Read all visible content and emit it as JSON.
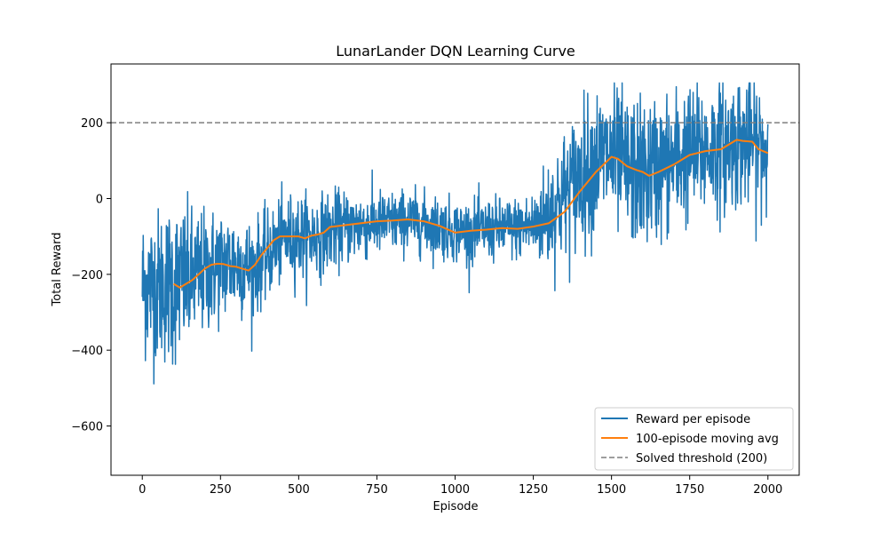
{
  "chart_data": {
    "type": "line",
    "title": "LunarLander DQN Learning Curve",
    "xlabel": "Episode",
    "ylabel": "Total Reward",
    "xlim": [
      -100,
      2100
    ],
    "ylim": [
      -730,
      355
    ],
    "xticks": [
      0,
      250,
      500,
      750,
      1000,
      1250,
      1500,
      1750,
      2000
    ],
    "yticks": [
      -600,
      -400,
      -200,
      0,
      200
    ],
    "xtick_labels": [
      "0",
      "250",
      "500",
      "750",
      "1000",
      "1250",
      "1500",
      "1750",
      "2000"
    ],
    "ytick_labels": [
      "−600",
      "−400",
      "−200",
      "0",
      "200"
    ],
    "grid": false,
    "legend_position": "bottom-right",
    "colors": {
      "reward": "#1f77b4",
      "moving_avg": "#ff7f0e",
      "threshold": "#7f7f7f"
    },
    "series": [
      {
        "name": "Reward per episode",
        "style": "solid",
        "episodes": 2000,
        "x_start": 0,
        "x_end": 2000,
        "trend_x": [
          0,
          50,
          100,
          150,
          200,
          250,
          300,
          350,
          400,
          450,
          500,
          550,
          600,
          650,
          700,
          750,
          800,
          850,
          900,
          950,
          1000,
          1050,
          1100,
          1150,
          1200,
          1250,
          1300,
          1350,
          1400,
          1450,
          1500,
          1550,
          1600,
          1650,
          1700,
          1750,
          1800,
          1850,
          1900,
          1950,
          2000
        ],
        "trend_y": [
          -230,
          -230,
          -225,
          -215,
          -195,
          -175,
          -170,
          -185,
          -150,
          -105,
          -100,
          -100,
          -85,
          -75,
          -70,
          -65,
          -62,
          -58,
          -65,
          -75,
          -85,
          -88,
          -82,
          -80,
          -78,
          -72,
          -40,
          10,
          60,
          100,
          110,
          75,
          65,
          80,
          100,
          120,
          125,
          135,
          150,
          150,
          120
        ],
        "noise_x": [
          0,
          100,
          200,
          300,
          400,
          500,
          600,
          700,
          800,
          900,
          1000,
          1100,
          1200,
          1250,
          1300,
          1400,
          1500,
          1600,
          1700,
          1800,
          1900,
          2000
        ],
        "noise_amp": [
          95,
          105,
          80,
          70,
          55,
          55,
          50,
          45,
          40,
          40,
          40,
          40,
          40,
          45,
          75,
          90,
          95,
          95,
          90,
          85,
          85,
          85
        ],
        "y_min": -680,
        "y_max": 305
      },
      {
        "name": "100-episode moving avg",
        "style": "solid",
        "x": [
          100,
          120,
          140,
          160,
          180,
          200,
          220,
          240,
          260,
          280,
          300,
          320,
          340,
          360,
          380,
          400,
          420,
          440,
          460,
          480,
          500,
          520,
          540,
          560,
          580,
          600,
          650,
          700,
          750,
          800,
          850,
          900,
          950,
          1000,
          1050,
          1100,
          1150,
          1200,
          1250,
          1300,
          1350,
          1400,
          1450,
          1500,
          1520,
          1550,
          1580,
          1600,
          1620,
          1650,
          1700,
          1750,
          1800,
          1850,
          1880,
          1900,
          1920,
          1950,
          1970,
          2000
        ],
        "y": [
          -225,
          -235,
          -225,
          -215,
          -200,
          -185,
          -175,
          -172,
          -173,
          -178,
          -180,
          -185,
          -190,
          -175,
          -150,
          -130,
          -110,
          -100,
          -100,
          -100,
          -100,
          -105,
          -98,
          -95,
          -90,
          -75,
          -70,
          -65,
          -60,
          -58,
          -55,
          -60,
          -72,
          -90,
          -85,
          -82,
          -78,
          -80,
          -74,
          -65,
          -35,
          20,
          70,
          110,
          105,
          85,
          75,
          70,
          60,
          70,
          90,
          115,
          125,
          130,
          145,
          155,
          152,
          150,
          130,
          120
        ]
      },
      {
        "name": "Solved threshold (200)",
        "style": "dashed",
        "y": 200
      }
    ]
  }
}
